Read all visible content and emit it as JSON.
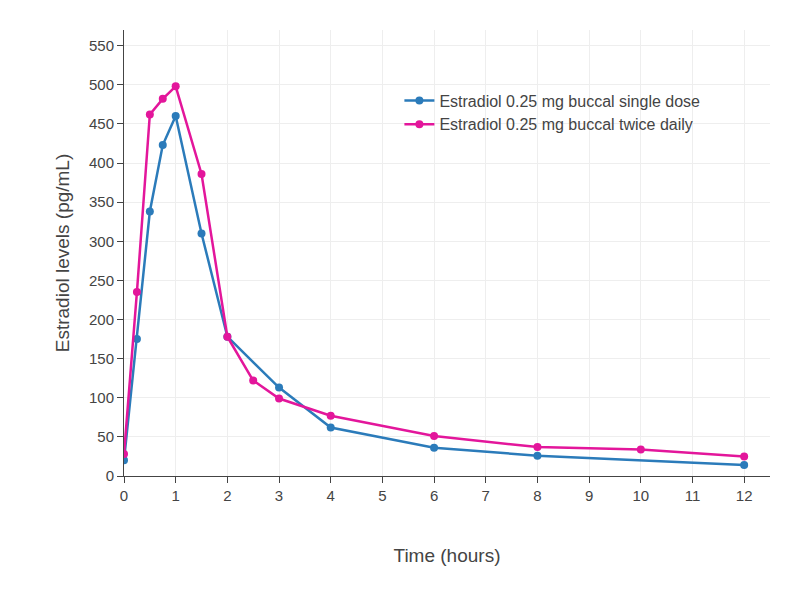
{
  "chart_data": {
    "type": "line",
    "x_label": "Time (hours)",
    "y_label": "Estradiol levels (pg/mL)",
    "xlim": [
      0,
      12.5
    ],
    "ylim": [
      0,
      570
    ],
    "xticks": [
      0,
      1,
      2,
      3,
      4,
      5,
      6,
      7,
      8,
      9,
      10,
      11,
      12
    ],
    "yticks": [
      0,
      50,
      100,
      150,
      200,
      250,
      300,
      350,
      400,
      450,
      500,
      550
    ],
    "grid": true,
    "legend": "top right",
    "marker": "circle",
    "series": [
      {
        "name": "Estradiol 0.25 mg buccal single dose",
        "color": "#2b7bba",
        "x": [
          0,
          0.25,
          0.5,
          0.75,
          1,
          1.5,
          2,
          3,
          4,
          6,
          8,
          12
        ],
        "values": [
          20,
          175,
          338,
          423,
          460,
          310,
          178,
          113,
          62,
          36,
          26,
          14
        ]
      },
      {
        "name": "Estradiol 0.25 mg buccal twice daily",
        "color": "#e3169b",
        "x": [
          0,
          0.25,
          0.5,
          0.75,
          1,
          1.5,
          2,
          2.5,
          3,
          4,
          6,
          8,
          10,
          12
        ],
        "values": [
          28,
          235,
          462,
          482,
          498,
          386,
          178,
          122,
          99,
          77,
          51,
          37,
          34,
          25
        ]
      }
    ]
  }
}
